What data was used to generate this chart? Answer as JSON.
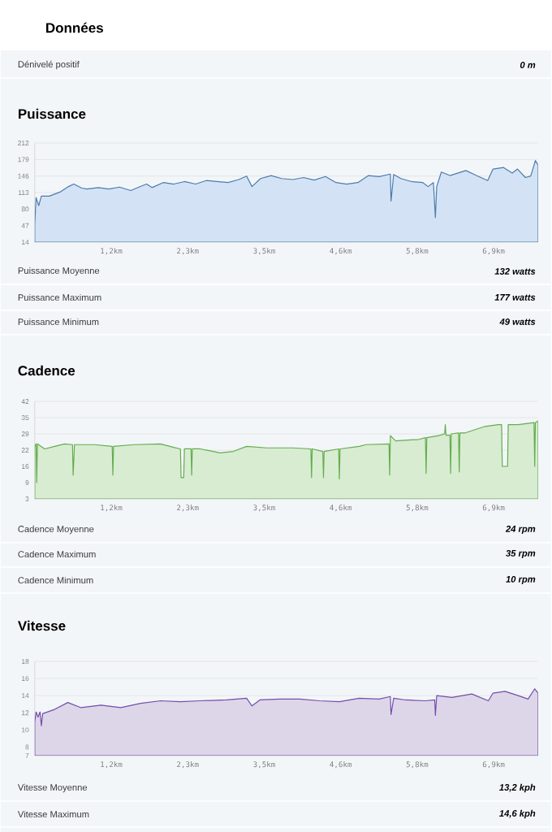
{
  "chart_data": [
    {
      "type": "area",
      "title": "Puissance",
      "color": "#d3e3f5",
      "grid": "y",
      "annotations": [
        "Données",
        "Dénivelé positif",
        "0 m",
        "Puissance Moyenne",
        "132 watts",
        "Puissance Maximum",
        "177 watts",
        "Puissance Minimum",
        "49 watts"
      ],
      "xlim": [
        0,
        7.6
      ],
      "xticks": [
        {
          "value": 1.155,
          "label": "1,2km"
        },
        {
          "value": 2.31,
          "label": "2,3km"
        },
        {
          "value": 3.465,
          "label": "3,5km"
        },
        {
          "value": 4.62,
          "label": "4,6km"
        },
        {
          "value": 5.775,
          "label": "5,8km"
        },
        {
          "value": 6.93,
          "label": "6,9km"
        }
      ],
      "ylim": [
        14,
        212
      ],
      "yticks": [
        14,
        47,
        80,
        113,
        146,
        179,
        212
      ],
      "x": [
        0,
        0.02,
        0.06,
        0.1,
        0.22,
        0.38,
        0.51,
        0.59,
        0.71,
        0.79,
        0.96,
        1.12,
        1.28,
        1.45,
        1.61,
        1.69,
        1.77,
        1.94,
        2.1,
        2.26,
        2.43,
        2.59,
        2.75,
        2.92,
        3.08,
        3.2,
        3.28,
        3.41,
        3.57,
        3.73,
        3.9,
        4.06,
        4.22,
        4.39,
        4.55,
        4.71,
        4.88,
        5.04,
        5.2,
        5.37,
        5.38,
        5.42,
        5.53,
        5.69,
        5.86,
        5.94,
        6.02,
        6.05,
        6.07,
        6.14,
        6.27,
        6.51,
        6.67,
        6.84,
        6.92,
        7.08,
        7.21,
        7.29,
        7.41,
        7.49,
        7.56,
        7.6
      ],
      "values": [
        49,
        103,
        87,
        106,
        106,
        114,
        125,
        130,
        122,
        120,
        123,
        120,
        124,
        117,
        126,
        130,
        123,
        133,
        130,
        135,
        130,
        137,
        135,
        133,
        139,
        146,
        125,
        141,
        147,
        141,
        139,
        143,
        138,
        145,
        133,
        130,
        133,
        147,
        145,
        150,
        96,
        149,
        141,
        135,
        133,
        125,
        133,
        63,
        125,
        154,
        147,
        157,
        147,
        137,
        160,
        163,
        152,
        160,
        143,
        146,
        177,
        168
      ]
    },
    {
      "type": "area",
      "title": "Cadence",
      "color": "#d8ecd2",
      "grid": "y",
      "annotations": [
        "Cadence Moyenne",
        "24 rpm",
        "Cadence Maximum",
        "35 rpm",
        "Cadence Minimum",
        "10 rpm"
      ],
      "xlim": [
        0,
        7.6
      ],
      "xticks": [
        {
          "value": 1.155,
          "label": "1,2km"
        },
        {
          "value": 2.31,
          "label": "2,3km"
        },
        {
          "value": 3.465,
          "label": "3,5km"
        },
        {
          "value": 4.62,
          "label": "4,6km"
        },
        {
          "value": 5.775,
          "label": "5,8km"
        },
        {
          "value": 6.93,
          "label": "6,9km"
        }
      ],
      "ylim": [
        3,
        42
      ],
      "yticks": [
        3,
        {
          "value": 9.5,
          "label": "9"
        },
        16,
        {
          "value": 22.5,
          "label": "22"
        },
        29,
        {
          "value": 35.5,
          "label": "35"
        },
        42
      ],
      "x": [
        0,
        0.02,
        0.03,
        0.04,
        0.15,
        0.3,
        0.45,
        0.57,
        0.58,
        0.6,
        0.9,
        1.17,
        1.18,
        1.19,
        1.5,
        1.9,
        2.1,
        2.2,
        2.21,
        2.25,
        2.26,
        2.36,
        2.37,
        2.38,
        2.5,
        2.8,
        3.0,
        3.2,
        3.5,
        3.9,
        4.17,
        4.18,
        4.19,
        4.35,
        4.36,
        4.37,
        4.59,
        4.6,
        4.61,
        4.9,
        5.0,
        5.35,
        5.36,
        5.37,
        5.45,
        5.8,
        5.9,
        5.91,
        5.92,
        6.1,
        6.19,
        6.2,
        6.21,
        6.27,
        6.28,
        6.29,
        6.4,
        6.41,
        6.42,
        6.5,
        6.8,
        7.0,
        7.05,
        7.06,
        7.14,
        7.15,
        7.3,
        7.54,
        7.55,
        7.56,
        7.6
      ],
      "values": [
        24,
        25,
        9.5,
        25,
        23,
        24,
        25,
        24.7,
        12.5,
        24.7,
        24.7,
        24,
        12.5,
        24,
        24.7,
        25,
        23.6,
        23,
        11.5,
        11.5,
        23,
        23,
        12.5,
        23,
        23,
        21.4,
        22,
        24,
        23.4,
        23.4,
        23,
        11.5,
        23,
        22,
        11.5,
        22,
        23,
        11,
        23,
        24,
        24.7,
        25,
        12.5,
        28.3,
        26.2,
        26.8,
        27.5,
        13.2,
        27.5,
        28.3,
        29,
        32.7,
        28.5,
        28.5,
        13.2,
        29,
        29.4,
        13.8,
        29.4,
        29.4,
        32,
        32.7,
        32.7,
        16,
        16,
        32.7,
        32.7,
        33.5,
        16,
        33.5,
        34.2
      ]
    },
    {
      "type": "area",
      "title": "Vitesse",
      "color": "#ddd6e8",
      "grid": "y",
      "annotations": [
        "Vitesse Moyenne",
        "13,2 kph",
        "Vitesse Maximum",
        "14,6 kph"
      ],
      "xlim": [
        0,
        7.6
      ],
      "xticks": [
        {
          "value": 1.155,
          "label": "1,2km"
        },
        {
          "value": 2.31,
          "label": "2,3km"
        },
        {
          "value": 3.465,
          "label": "3,5km"
        },
        {
          "value": 4.62,
          "label": "4,6km"
        },
        {
          "value": 5.775,
          "label": "5,8km"
        },
        {
          "value": 6.93,
          "label": "6,9km"
        }
      ],
      "ylim": [
        7,
        18
      ],
      "yticks": [
        7,
        8,
        10,
        12,
        14,
        16,
        18
      ],
      "x": [
        0,
        0.02,
        0.05,
        0.08,
        0.1,
        0.12,
        0.3,
        0.5,
        0.7,
        1.0,
        1.3,
        1.6,
        1.9,
        2.2,
        2.5,
        2.9,
        3.2,
        3.28,
        3.4,
        3.7,
        4.0,
        4.3,
        4.6,
        4.9,
        5.2,
        5.37,
        5.38,
        5.42,
        5.6,
        5.9,
        6.04,
        6.05,
        6.07,
        6.3,
        6.6,
        6.85,
        6.92,
        7.1,
        7.3,
        7.45,
        7.55,
        7.6
      ],
      "values": [
        10.9,
        12.1,
        11.5,
        12.1,
        10.5,
        11.9,
        12.4,
        13.2,
        12.6,
        12.9,
        12.6,
        13.1,
        13.4,
        13.3,
        13.4,
        13.5,
        13.7,
        12.8,
        13.5,
        13.6,
        13.6,
        13.4,
        13.3,
        13.7,
        13.6,
        13.9,
        11.8,
        13.7,
        13.5,
        13.4,
        13.5,
        11.7,
        14.0,
        13.8,
        14.2,
        13.4,
        14.3,
        14.5,
        14.0,
        13.6,
        14.8,
        14.3
      ]
    }
  ]
}
